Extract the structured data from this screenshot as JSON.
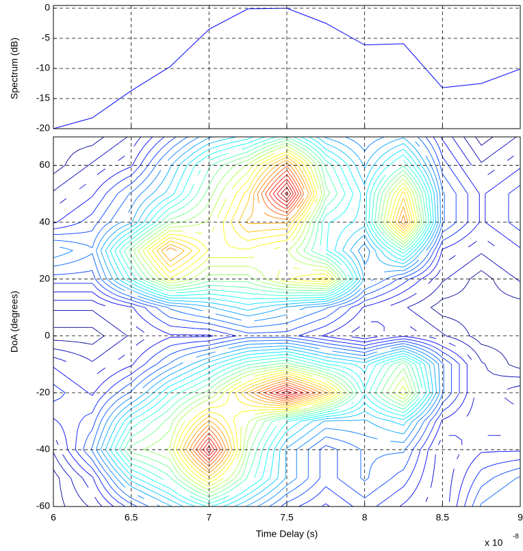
{
  "chart_data": [
    {
      "type": "line",
      "ylabel": "Spectrum (dB)",
      "x": [
        6,
        6.25,
        6.5,
        6.75,
        7,
        7.25,
        7.5,
        7.75,
        8,
        8.25,
        8.5,
        8.75,
        9
      ],
      "values": [
        -20,
        -18.2,
        -13.7,
        -9.7,
        -3.5,
        -0.1,
        0,
        -2.5,
        -6.1,
        -5.9,
        -13.2,
        -12.5,
        -10.1
      ],
      "color": "#0000ff",
      "xlim": [
        6,
        9
      ],
      "ylim": [
        -20,
        0
      ],
      "xticks": [
        6,
        6.5,
        7,
        7.5,
        8,
        8.5,
        9
      ],
      "yticks": [
        0,
        -5,
        -10,
        -15,
        -20
      ],
      "grid": true
    },
    {
      "type": "contour",
      "xlabel": "Time Delay (s)",
      "ylabel": "DoA (degrees)",
      "x_scale_label": {
        "base": "x 10",
        "exponent": "-8"
      },
      "x": [
        6,
        6.25,
        6.5,
        6.75,
        7,
        7.25,
        7.5,
        7.75,
        8,
        8.25,
        8.5,
        8.75,
        9
      ],
      "y": [
        -60,
        -50,
        -40,
        -30,
        -20,
        -10,
        0,
        10,
        20,
        30,
        40,
        50,
        60,
        70
      ],
      "z": [
        [
          0.1,
          0.15,
          0.25,
          0.35,
          0.45,
          0.35,
          0.25,
          0.2,
          0.25,
          0.2,
          0.15,
          0.3,
          0.35
        ],
        [
          0.1,
          0.2,
          0.4,
          0.5,
          0.7,
          0.5,
          0.35,
          0.25,
          0.3,
          0.25,
          0.15,
          0.25,
          0.3
        ],
        [
          0.15,
          0.3,
          0.55,
          0.6,
          0.95,
          0.55,
          0.35,
          0.25,
          0.3,
          0.3,
          0.15,
          0.2,
          0.2
        ],
        [
          0.2,
          0.25,
          0.45,
          0.55,
          0.75,
          0.6,
          0.45,
          0.35,
          0.35,
          0.4,
          0.2,
          0.15,
          0.15
        ],
        [
          0.25,
          0.2,
          0.3,
          0.45,
          0.55,
          0.75,
          0.95,
          0.75,
          0.45,
          0.65,
          0.3,
          0.15,
          0.2
        ],
        [
          0.2,
          0.15,
          0.2,
          0.3,
          0.4,
          0.5,
          0.55,
          0.45,
          0.4,
          0.55,
          0.3,
          0.15,
          0.1
        ],
        [
          0.1,
          0.1,
          0.15,
          0.2,
          0.2,
          0.25,
          0.25,
          0.2,
          0.15,
          0.2,
          0.15,
          0.1,
          0.1
        ],
        [
          0.15,
          0.15,
          0.2,
          0.3,
          0.35,
          0.4,
          0.35,
          0.3,
          0.2,
          0.15,
          0.1,
          0.1,
          0.1
        ],
        [
          0.25,
          0.25,
          0.45,
          0.65,
          0.55,
          0.55,
          0.65,
          0.7,
          0.35,
          0.25,
          0.15,
          0.1,
          0.15
        ],
        [
          0.35,
          0.3,
          0.55,
          0.8,
          0.65,
          0.65,
          0.6,
          0.45,
          0.3,
          0.5,
          0.2,
          0.15,
          0.2
        ],
        [
          0.2,
          0.25,
          0.35,
          0.55,
          0.6,
          0.75,
          0.75,
          0.45,
          0.4,
          0.8,
          0.3,
          0.2,
          0.25
        ],
        [
          0.15,
          0.2,
          0.3,
          0.4,
          0.55,
          0.7,
          1.0,
          0.55,
          0.4,
          0.7,
          0.3,
          0.2,
          0.25
        ],
        [
          0.1,
          0.15,
          0.2,
          0.35,
          0.5,
          0.6,
          0.8,
          0.5,
          0.35,
          0.5,
          0.25,
          0.15,
          0.2
        ],
        [
          0.1,
          0.1,
          0.15,
          0.25,
          0.35,
          0.4,
          0.5,
          0.35,
          0.3,
          0.35,
          0.2,
          0.1,
          0.15
        ]
      ],
      "levels": 30,
      "colormap": "jet",
      "xlim": [
        6,
        9
      ],
      "ylim": [
        -60,
        70
      ],
      "xticks": [
        6,
        6.5,
        7,
        7.5,
        8,
        8.5,
        9
      ],
      "yticks": [
        -60,
        -40,
        -20,
        0,
        20,
        40,
        60
      ],
      "grid": true
    }
  ]
}
